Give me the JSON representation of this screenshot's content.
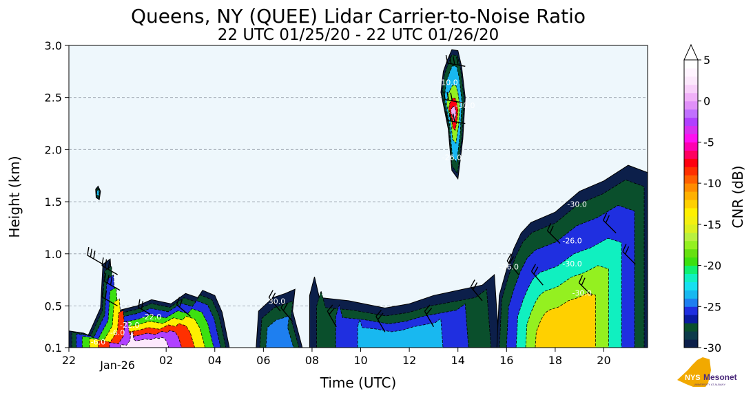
{
  "chart_data": {
    "type": "heatmap",
    "title": "Queens, NY (QUEE) Lidar Carrier-to-Noise Ratio",
    "subtitle": "22 UTC 01/25/20 - 22 UTC 01/26/20",
    "xlabel": "Time (UTC)",
    "ylabel": "Height (km)",
    "x_range_hours": [
      22,
      45.8
    ],
    "x_ticks": [
      {
        "h": 22,
        "label": "22"
      },
      {
        "h": 26,
        "label": "02"
      },
      {
        "h": 28,
        "label": "04"
      },
      {
        "h": 30,
        "label": "06"
      },
      {
        "h": 32,
        "label": "08"
      },
      {
        "h": 34,
        "label": "10"
      },
      {
        "h": 36,
        "label": "12"
      },
      {
        "h": 38,
        "label": "14"
      },
      {
        "h": 40,
        "label": "16"
      },
      {
        "h": 42,
        "label": "18"
      },
      {
        "h": 44,
        "label": "20"
      }
    ],
    "date_label": {
      "h": 24,
      "label": "Jan-26"
    },
    "ylim": [
      0.1,
      3.0
    ],
    "y_ticks": [
      {
        "v": 0.1,
        "label": "0.1"
      },
      {
        "v": 0.5,
        "label": "0.5"
      },
      {
        "v": 1.0,
        "label": "1.0"
      },
      {
        "v": 1.5,
        "label": "1.5"
      },
      {
        "v": 2.0,
        "label": "2.0"
      },
      {
        "v": 2.5,
        "label": "2.5"
      },
      {
        "v": 3.0,
        "label": "3.0"
      }
    ],
    "grid": "horizontal dashed",
    "background_color": "#eef7fc",
    "colorbar": {
      "label": "CNR (dB)",
      "min": -30,
      "max": 5,
      "ticks": [
        {
          "v": 5,
          "label": "5"
        },
        {
          "v": 0,
          "label": "0"
        },
        {
          "v": -5,
          "label": "-5"
        },
        {
          "v": -10,
          "label": "-10"
        },
        {
          "v": -15,
          "label": "-15"
        },
        {
          "v": -20,
          "label": "-20"
        },
        {
          "v": -25,
          "label": "-25"
        },
        {
          "v": -30,
          "label": "-30"
        }
      ],
      "colors_low_to_high": [
        "#0c1f4a",
        "#0d3b4a",
        "#0a4f2c",
        "#0a1aa0",
        "#1f2fe0",
        "#1e7ff0",
        "#18b8f0",
        "#16e0f0",
        "#10f0c0",
        "#10f070",
        "#3ce010",
        "#66e010",
        "#94f020",
        "#b8f040",
        "#dcf020",
        "#f4f010",
        "#fff000",
        "#ffd000",
        "#ffb000",
        "#ff8c00",
        "#ff6000",
        "#ff3000",
        "#ff0010",
        "#ff0060",
        "#ff00b0",
        "#ff10f0",
        "#d830f0",
        "#b040ff",
        "#c070ff",
        "#e090f8",
        "#f0b0f8",
        "#f8d0fa",
        "#fce8fc",
        "#fff4ff",
        "#ffffff"
      ]
    },
    "contour_labels": [
      {
        "h": 23.2,
        "v": 0.13,
        "label": "-6.0"
      },
      {
        "h": 24.0,
        "v": 0.22,
        "label": "-6.0"
      },
      {
        "h": 24.5,
        "v": 0.29,
        "label": "-22.0"
      },
      {
        "h": 25.4,
        "v": 0.37,
        "label": "-22.0"
      },
      {
        "h": 30.5,
        "v": 0.52,
        "label": "-30.0"
      },
      {
        "h": 37.6,
        "v": 2.62,
        "label": "-10.0"
      },
      {
        "h": 38.3,
        "v": 2.4,
        "label": "-30.0"
      },
      {
        "h": 37.75,
        "v": 1.9,
        "label": "-26.0"
      },
      {
        "h": 40.1,
        "v": 0.85,
        "label": "-26.0"
      },
      {
        "h": 42.7,
        "v": 1.1,
        "label": "-26.0"
      },
      {
        "h": 42.9,
        "v": 1.45,
        "label": "-30.0"
      },
      {
        "h": 42.7,
        "v": 0.88,
        "label": "-30.0"
      },
      {
        "h": 43.1,
        "v": 0.6,
        "label": "-30.0"
      }
    ],
    "cloud_regions": [
      {
        "name": "surface-layer",
        "outline": [
          [
            22.0,
            0.1
          ],
          [
            22.0,
            0.26
          ],
          [
            22.6,
            0.24
          ],
          [
            22.8,
            0.22
          ],
          [
            23.3,
            0.48
          ],
          [
            23.4,
            0.9
          ],
          [
            23.7,
            0.95
          ],
          [
            23.8,
            0.55
          ],
          [
            24.1,
            0.46
          ],
          [
            24.8,
            0.5
          ],
          [
            25.4,
            0.56
          ],
          [
            26.2,
            0.52
          ],
          [
            26.8,
            0.62
          ],
          [
            27.3,
            0.58
          ],
          [
            27.5,
            0.65
          ],
          [
            28.0,
            0.6
          ],
          [
            28.3,
            0.44
          ],
          [
            28.6,
            0.1
          ]
        ],
        "bands": [
          {
            "cnr": -28,
            "sx": 0.96,
            "sy": 0.92
          },
          {
            "cnr": -26,
            "sx": 0.9,
            "sy": 0.82
          },
          {
            "cnr": -20,
            "sx": 0.82,
            "sy": 0.68
          },
          {
            "cnr": -14,
            "sx": 0.72,
            "sy": 0.55
          },
          {
            "cnr": -9,
            "sx": 0.6,
            "sy": 0.42
          },
          {
            "cnr": -3,
            "sx": 0.45,
            "sy": 0.3
          },
          {
            "cnr": 2,
            "sx": 0.3,
            "sy": 0.18
          }
        ]
      },
      {
        "name": "small-cloud-night",
        "outline": [
          [
            23.1,
            1.62
          ],
          [
            23.2,
            1.65
          ],
          [
            23.3,
            1.6
          ],
          [
            23.25,
            1.52
          ],
          [
            23.12,
            1.54
          ]
        ],
        "bands": [
          {
            "cnr": -28,
            "sx": 0.8,
            "sy": 0.8
          },
          {
            "cnr": -24,
            "sx": 0.5,
            "sy": 0.5
          }
        ]
      },
      {
        "name": "mid-night-layer",
        "outline": [
          [
            29.7,
            0.1
          ],
          [
            29.8,
            0.45
          ],
          [
            30.4,
            0.58
          ],
          [
            30.9,
            0.62
          ],
          [
            31.3,
            0.66
          ],
          [
            31.2,
            0.45
          ],
          [
            31.6,
            0.1
          ]
        ],
        "bands": [
          {
            "cnr": -28,
            "sx": 0.85,
            "sy": 0.8
          },
          {
            "cnr": -25,
            "sx": 0.6,
            "sy": 0.55
          }
        ]
      },
      {
        "name": "morning-layer",
        "outline": [
          [
            31.9,
            0.1
          ],
          [
            31.9,
            0.6
          ],
          [
            32.1,
            0.78
          ],
          [
            32.3,
            0.58
          ],
          [
            33.5,
            0.55
          ],
          [
            35.0,
            0.48
          ],
          [
            36.0,
            0.52
          ],
          [
            37.0,
            0.6
          ],
          [
            38.0,
            0.65
          ],
          [
            39.0,
            0.7
          ],
          [
            39.5,
            0.8
          ],
          [
            39.7,
            0.1
          ]
        ],
        "bands": [
          {
            "cnr": -28,
            "sx": 0.92,
            "sy": 0.8
          },
          {
            "cnr": -26,
            "sx": 0.7,
            "sy": 0.6
          },
          {
            "cnr": -24,
            "sx": 0.45,
            "sy": 0.4
          }
        ]
      },
      {
        "name": "upper-plume",
        "outline": [
          [
            37.55,
            2.85
          ],
          [
            37.75,
            2.96
          ],
          [
            38.0,
            2.95
          ],
          [
            38.15,
            2.8
          ],
          [
            38.3,
            2.5
          ],
          [
            38.2,
            2.1
          ],
          [
            38.0,
            1.72
          ],
          [
            37.75,
            1.8
          ],
          [
            37.6,
            2.2
          ],
          [
            37.3,
            2.55
          ],
          [
            37.4,
            2.75
          ]
        ],
        "bands": [
          {
            "cnr": -28,
            "sx": 0.9,
            "sy": 0.92
          },
          {
            "cnr": -24,
            "sx": 0.72,
            "sy": 0.75
          },
          {
            "cnr": -18,
            "sx": 0.55,
            "sy": 0.45
          },
          {
            "cnr": -8,
            "sx": 0.38,
            "sy": 0.25
          },
          {
            "cnr": 0,
            "sx": 0.22,
            "sy": 0.12
          }
        ]
      },
      {
        "name": "afternoon-boundary-layer",
        "outline": [
          [
            39.6,
            0.1
          ],
          [
            39.7,
            0.6
          ],
          [
            40.0,
            0.85
          ],
          [
            40.3,
            1.05
          ],
          [
            40.6,
            1.2
          ],
          [
            41.0,
            1.3
          ],
          [
            42.0,
            1.4
          ],
          [
            43.0,
            1.6
          ],
          [
            44.0,
            1.7
          ],
          [
            45.0,
            1.85
          ],
          [
            45.8,
            1.78
          ],
          [
            45.8,
            0.1
          ]
        ],
        "bands": [
          {
            "cnr": -28,
            "sx": 0.96,
            "sy": 0.92
          },
          {
            "cnr": -26,
            "sx": 0.85,
            "sy": 0.78
          },
          {
            "cnr": -22,
            "sx": 0.7,
            "sy": 0.6
          },
          {
            "cnr": -18,
            "sx": 0.55,
            "sy": 0.45
          },
          {
            "cnr": -13,
            "sx": 0.4,
            "sy": 0.3
          }
        ]
      }
    ],
    "wind_barbs": [
      {
        "h": 23.4,
        "v": 0.9,
        "dir": 300,
        "flags": 3
      },
      {
        "h": 24.0,
        "v": 0.8,
        "dir": 300,
        "flags": 3
      },
      {
        "h": 24.1,
        "v": 0.65,
        "dir": 300,
        "flags": 3
      },
      {
        "h": 24.0,
        "v": 0.5,
        "dir": 300,
        "flags": 2
      },
      {
        "h": 25.5,
        "v": 0.4,
        "dir": 300,
        "flags": 2
      },
      {
        "h": 27.0,
        "v": 0.4,
        "dir": 310,
        "flags": 2
      },
      {
        "h": 30.7,
        "v": 0.45,
        "dir": 320,
        "flags": 2
      },
      {
        "h": 31.2,
        "v": 0.35,
        "dir": 320,
        "flags": 2
      },
      {
        "h": 33.0,
        "v": 0.3,
        "dir": 330,
        "flags": 2
      },
      {
        "h": 35.0,
        "v": 0.25,
        "dir": 330,
        "flags": 2
      },
      {
        "h": 37.0,
        "v": 0.3,
        "dir": 330,
        "flags": 2
      },
      {
        "h": 38.3,
        "v": 2.8,
        "dir": 280,
        "flags": 4
      },
      {
        "h": 38.2,
        "v": 2.45,
        "dir": 280,
        "flags": 3
      },
      {
        "h": 38.3,
        "v": 2.25,
        "dir": 280,
        "flags": 3
      },
      {
        "h": 39.0,
        "v": 0.55,
        "dir": 320,
        "flags": 2
      },
      {
        "h": 40.5,
        "v": 0.8,
        "dir": 320,
        "flags": 2
      },
      {
        "h": 41.5,
        "v": 0.7,
        "dir": 320,
        "flags": 2
      },
      {
        "h": 42.2,
        "v": 1.1,
        "dir": 315,
        "flags": 2
      },
      {
        "h": 43.5,
        "v": 0.6,
        "dir": 315,
        "flags": 2
      },
      {
        "h": 44.5,
        "v": 1.2,
        "dir": 315,
        "flags": 2
      },
      {
        "h": 45.3,
        "v": 0.9,
        "dir": 315,
        "flags": 2
      }
    ],
    "logo": {
      "text_main": "NYS",
      "text_secondary": "Mesonet",
      "text_small": "UNIVERSITY AT ALBANY"
    }
  }
}
